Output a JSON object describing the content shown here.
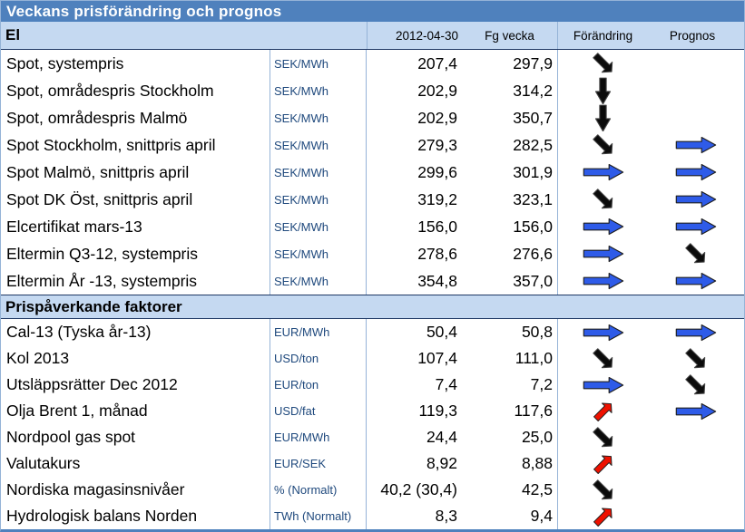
{
  "title": "Veckans prisförändring och prognos",
  "columns": {
    "date": "2012-04-30",
    "prev": "Fg vecka",
    "change": "Förändring",
    "forecast": "Prognos"
  },
  "colors": {
    "titlebar_bg": "#4f81bd",
    "band_bg": "#c5d9f1",
    "grid_line": "#95b3d7",
    "section_line": "#1f3864",
    "unit_text": "#1f497d",
    "arrow_black": "#0b0b0b",
    "arrow_blue": "#2e5be8",
    "arrow_red": "#ee1100"
  },
  "sections": [
    {
      "key": "el",
      "name": "El",
      "show_column_headers": true,
      "rows": [
        {
          "label": "Spot, systempris",
          "unit": "SEK/MWh",
          "current": "207,4",
          "previous": "297,9",
          "change": "black:down-right",
          "forecast": ""
        },
        {
          "label": "Spot, områdespris Stockholm",
          "unit": "SEK/MWh",
          "current": "202,9",
          "previous": "314,2",
          "change": "black:down",
          "forecast": ""
        },
        {
          "label": "Spot, områdespris Malmö",
          "unit": "SEK/MWh",
          "current": "202,9",
          "previous": "350,7",
          "change": "black:down",
          "forecast": ""
        },
        {
          "label": "Spot Stockholm, snittpris april",
          "unit": "SEK/MWh",
          "current": "279,3",
          "previous": "282,5",
          "change": "black:down-right",
          "forecast": "blue:right"
        },
        {
          "label": "Spot Malmö, snittpris april",
          "unit": "SEK/MWh",
          "current": "299,6",
          "previous": "301,9",
          "change": "blue:right",
          "forecast": "blue:right"
        },
        {
          "label": "Spot DK Öst, snittpris april",
          "unit": "SEK/MWh",
          "current": "319,2",
          "previous": "323,1",
          "change": "black:down-right",
          "forecast": "blue:right"
        },
        {
          "label": "Elcertifikat mars-13",
          "unit": "SEK/MWh",
          "current": "156,0",
          "previous": "156,0",
          "change": "blue:right",
          "forecast": "blue:right"
        },
        {
          "label": "Eltermin Q3-12, systempris",
          "unit": "SEK/MWh",
          "current": "278,6",
          "previous": "276,6",
          "change": "blue:right",
          "forecast": "black:down-right"
        },
        {
          "label": "Eltermin År -13, systempris",
          "unit": "SEK/MWh",
          "current": "354,8",
          "previous": "357,0",
          "change": "blue:right",
          "forecast": "blue:right"
        }
      ]
    },
    {
      "key": "faktorer",
      "name": "Prispåverkande faktorer",
      "show_column_headers": false,
      "rows": [
        {
          "label": "Cal-13 (Tyska år-13)",
          "unit": "EUR/MWh",
          "current": "50,4",
          "previous": "50,8",
          "change": "blue:right",
          "forecast": "blue:right"
        },
        {
          "label": "Kol 2013",
          "unit": "USD/ton",
          "current": "107,4",
          "previous": "111,0",
          "change": "black:down-right",
          "forecast": "black:down-right"
        },
        {
          "label": "Utsläppsrätter Dec 2012",
          "unit": "EUR/ton",
          "current": "7,4",
          "previous": "7,2",
          "change": "blue:right",
          "forecast": "black:down-right"
        },
        {
          "label": "Olja Brent 1, månad",
          "unit": "USD/fat",
          "current": "119,3",
          "previous": "117,6",
          "change": "red:up-right",
          "forecast": "blue:right"
        },
        {
          "label": "Nordpool gas spot",
          "unit": "EUR/MWh",
          "current": "24,4",
          "previous": "25,0",
          "change": "black:down-right",
          "forecast": ""
        },
        {
          "label": "Valutakurs",
          "unit": "EUR/SEK",
          "current": "8,92",
          "previous": "8,88",
          "change": "red:up-right",
          "forecast": ""
        },
        {
          "label": "Nordiska magasinsnivåer",
          "unit": "% (Normalt)",
          "current": "40,2 (30,4)",
          "previous": "42,5",
          "change": "black:down-right",
          "forecast": ""
        },
        {
          "label": "Hydrologisk balans Norden",
          "unit": "TWh (Normalt)",
          "current": "8,3",
          "previous": "9,4",
          "change": "red:up-right",
          "forecast": ""
        }
      ]
    }
  ]
}
